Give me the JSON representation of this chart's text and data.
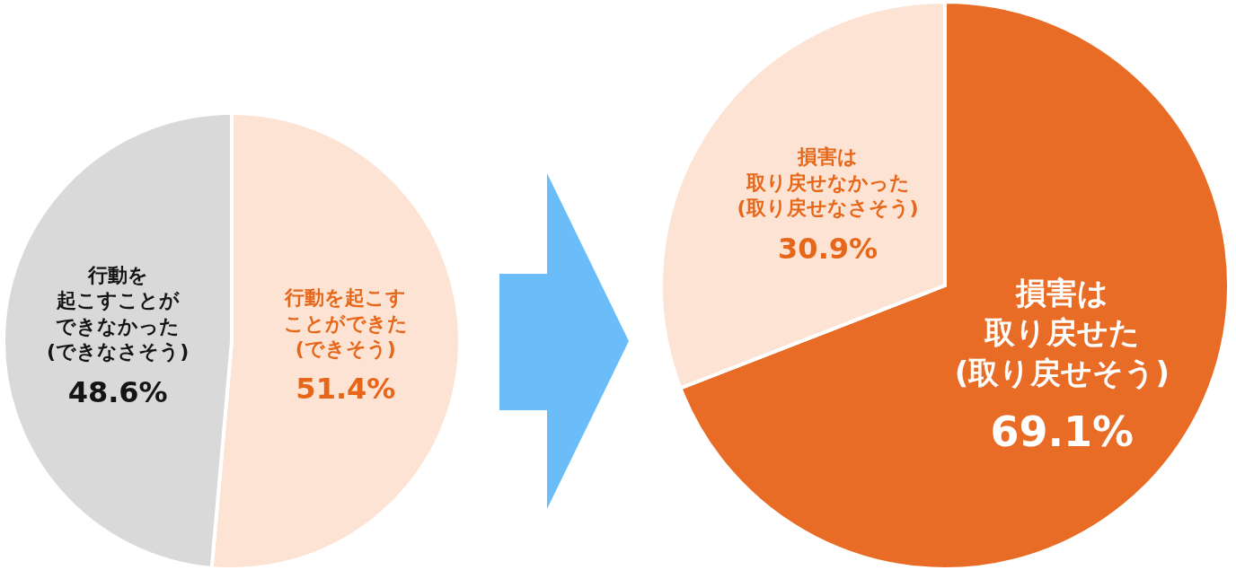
{
  "chart_data": [
    {
      "type": "pie",
      "categories": [
        "行動を起こすことができた(できそう)",
        "行動を起こすことができなかった(できなさそう)"
      ],
      "values": [
        51.4,
        48.6
      ],
      "colors": [
        "#fde3d3",
        "#d9d9d9"
      ],
      "value_labels": [
        "51.4%",
        "48.6%"
      ]
    },
    {
      "type": "pie",
      "categories": [
        "損害は取り戻せた(取り戻せそう)",
        "損害は取り戻せなかった(取り戻せなさそう)"
      ],
      "values": [
        69.1,
        30.9
      ],
      "colors": [
        "#e86c25",
        "#fde3d3"
      ],
      "value_labels": [
        "69.1%",
        "30.9%"
      ]
    }
  ]
}
